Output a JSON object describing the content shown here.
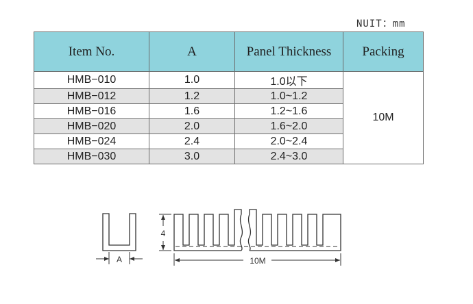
{
  "unit_note": "NUIT：mm",
  "table": {
    "headers": [
      "Item No.",
      "A",
      "Panel Thickness",
      "Packing"
    ],
    "rows": [
      {
        "item": "HMB−010",
        "a": "1.0",
        "thickness": "1.0以下"
      },
      {
        "item": "HMB−012",
        "a": "1.2",
        "thickness": "1.0~1.2"
      },
      {
        "item": "HMB−016",
        "a": "1.6",
        "thickness": "1.2~1.6"
      },
      {
        "item": "HMB−020",
        "a": "2.0",
        "thickness": "1.6~2.0"
      },
      {
        "item": "HMB−024",
        "a": "2.4",
        "thickness": "2.0~2.4"
      },
      {
        "item": "HMB−030",
        "a": "3.0",
        "thickness": "2.4~3.0"
      }
    ],
    "packing": "10M"
  },
  "drawing": {
    "a_label": "A",
    "height_label": "4",
    "length_label": "10M"
  },
  "colors": {
    "header_bg": "#8fd3dd",
    "stripe_bg": "#e3e3e3",
    "border": "#6b6b6b"
  }
}
